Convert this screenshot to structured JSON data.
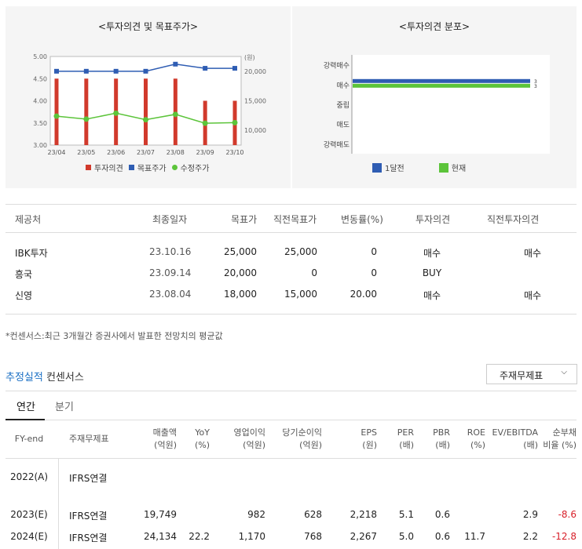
{
  "left_chart": {
    "title": "<투자의견 및 목표주가>",
    "unit": "(원)",
    "legend": [
      {
        "label": "투자의견",
        "color": "#d13a2c"
      },
      {
        "label": "목표주가",
        "color": "#2f5db3"
      },
      {
        "label": "수정주가",
        "color": "#5cc43a"
      }
    ]
  },
  "right_chart": {
    "title": "<투자의견 분포>",
    "legend": [
      {
        "label": "1달전",
        "color": "#2f5db3"
      },
      {
        "label": "현재",
        "color": "#5cc43a"
      }
    ]
  },
  "chart_data": [
    {
      "type": "bar",
      "title": "<투자의견 및 목표주가>",
      "categories": [
        "23/04",
        "23/05",
        "23/06",
        "23/07",
        "23/08",
        "23/09",
        "23/10"
      ],
      "y_left": {
        "range": [
          3.0,
          5.0
        ],
        "ticks": [
          "5.00",
          "4.50",
          "4.00",
          "3.50",
          "3.00"
        ]
      },
      "y_right": {
        "range": [
          7500,
          22500
        ],
        "ticks": [
          "20,000",
          "15,000",
          "10,000"
        ],
        "unit": "(원)"
      },
      "series": [
        {
          "name": "투자의견",
          "kind": "bar",
          "axis": "left",
          "color": "#d13a2c",
          "values": [
            4.5,
            4.5,
            4.5,
            4.5,
            4.5,
            4.0,
            4.0
          ]
        },
        {
          "name": "목표주가",
          "kind": "line",
          "axis": "right",
          "color": "#2f5db3",
          "values": [
            20000,
            20000,
            20000,
            20000,
            21200,
            20500,
            20500
          ]
        },
        {
          "name": "수정주가",
          "kind": "line",
          "axis": "right",
          "color": "#5cc43a",
          "values": [
            12400,
            11900,
            12900,
            11800,
            12700,
            11200,
            11300
          ]
        }
      ],
      "grid": false
    },
    {
      "type": "bar",
      "orientation": "horizontal",
      "title": "<투자의견 분포>",
      "categories": [
        "강력매수",
        "매수",
        "중립",
        "매도",
        "강력매도"
      ],
      "series": [
        {
          "name": "1달전",
          "color": "#2f5db3",
          "values": [
            0,
            3,
            0,
            0,
            0
          ]
        },
        {
          "name": "현재",
          "color": "#5cc43a",
          "values": [
            0,
            3,
            0,
            0,
            0
          ]
        }
      ],
      "value_labels": [
        "3",
        "3"
      ]
    }
  ],
  "opinion_table": {
    "headers": [
      "제공처",
      "최종일자",
      "목표가",
      "직전목표가",
      "변동률(%)",
      "투자의견",
      "직전투자의견"
    ],
    "rows": [
      [
        "IBK투자",
        "23.10.16",
        "25,000",
        "25,000",
        "0",
        "매수",
        "매수"
      ],
      [
        "흥국",
        "23.09.14",
        "20,000",
        "0",
        "0",
        "BUY",
        ""
      ],
      [
        "신영",
        "23.08.04",
        "18,000",
        "15,000",
        "20.00",
        "매수",
        "매수"
      ]
    ]
  },
  "note": "*컨센서스:최근 3개월간 증권사에서 발표한 전망치의 평균값",
  "section": {
    "title_blue": "추정실적",
    "title_rest": " 컨센서스"
  },
  "dropdown": {
    "value": "주재무제표",
    "chevron": "⌵"
  },
  "tabs": [
    "연간",
    "분기"
  ],
  "fin_table": {
    "headers": [
      [
        "FY-end"
      ],
      [
        "주재무제표"
      ],
      [
        "매출액",
        "(억원)"
      ],
      [
        "YoY",
        "(%)"
      ],
      [
        "영업이익",
        "(억원)"
      ],
      [
        "당기순이익",
        "(억원)"
      ],
      [
        "EPS",
        "(원)"
      ],
      [
        "PER",
        "(배)"
      ],
      [
        "PBR",
        "(배)"
      ],
      [
        "ROE",
        "(%)"
      ],
      [
        "EV/EBITDA",
        "(배)"
      ],
      [
        "순부채",
        "비율 (%)"
      ]
    ],
    "rows": [
      [
        "2022(A)",
        "IFRS연결",
        "",
        "",
        "",
        "",
        "",
        "",
        "",
        "",
        "",
        ""
      ],
      [
        "2023(E)",
        "IFRS연결",
        "19,749",
        "",
        "982",
        "628",
        "2,218",
        "5.1",
        "0.6",
        "",
        "2.9",
        "-8.6"
      ],
      [
        "2024(E)",
        "IFRS연결",
        "24,134",
        "22.2",
        "1,170",
        "768",
        "2,267",
        "5.0",
        "0.6",
        "11.7",
        "2.2",
        "-12.8"
      ]
    ]
  }
}
